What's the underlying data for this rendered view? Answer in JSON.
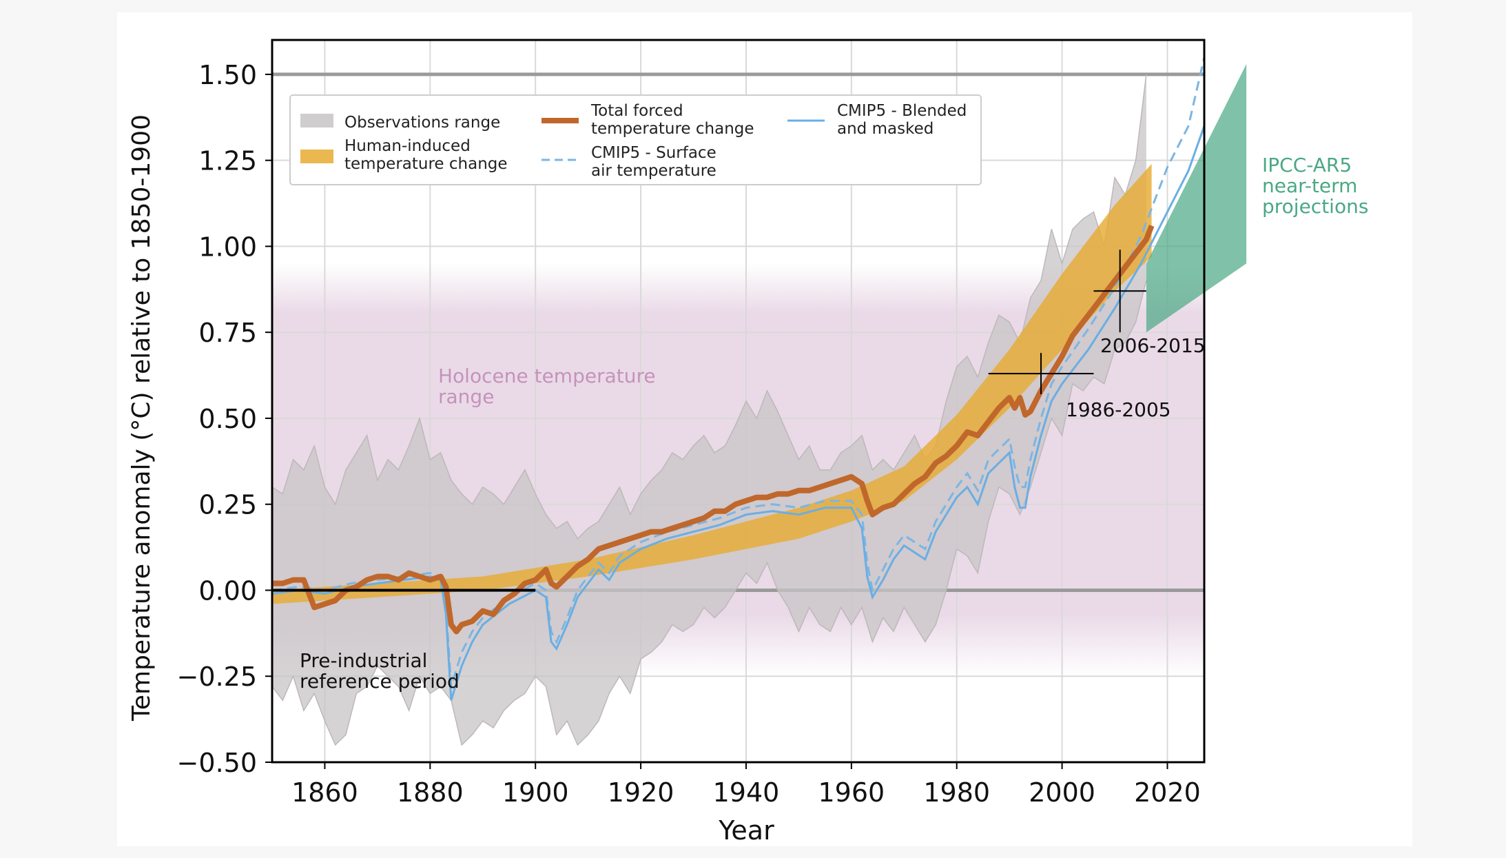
{
  "chart_data": {
    "type": "line",
    "title": "",
    "xlabel": "Year",
    "ylabel": "Temperature anomaly (°C) relative to 1850-1900",
    "xlim": [
      1850,
      2027
    ],
    "ylim": [
      -0.5,
      1.6
    ],
    "grid": true,
    "legend_position": "top-left",
    "x_ticks": [
      1860,
      1880,
      1900,
      1920,
      1940,
      1960,
      1980,
      2000,
      2020
    ],
    "y_ticks": [
      -0.5,
      -0.25,
      0.0,
      0.25,
      0.5,
      0.75,
      1.0,
      1.25,
      1.5
    ],
    "y_tick_labels": [
      "−0.50",
      "−0.25",
      "0.00",
      "0.25",
      "0.50",
      "0.75",
      "1.00",
      "1.25",
      "1.50"
    ],
    "x_tick_labels": [
      "1860",
      "1880",
      "1900",
      "1920",
      "1940",
      "1960",
      "1980",
      "2000",
      "2020"
    ],
    "reference_lines": [
      0.0,
      1.5
    ],
    "legend": [
      {
        "key": "obs",
        "label_lines": [
          "Observations range"
        ],
        "style": "band",
        "color": "#c8c4c6"
      },
      {
        "key": "human",
        "label_lines": [
          "Human-induced",
          "temperature change"
        ],
        "style": "band",
        "color": "#e7aa30"
      },
      {
        "key": "forced",
        "label_lines": [
          "Total forced",
          "temperature change"
        ],
        "style": "line",
        "color": "#c0672b"
      },
      {
        "key": "sat",
        "label_lines": [
          "CMIP5 - Surface",
          "air temperature"
        ],
        "style": "dashed",
        "color": "#7ab6e4"
      },
      {
        "key": "blended",
        "label_lines": [
          "CMIP5 - Blended",
          "and masked"
        ],
        "style": "line",
        "color": "#6aaee3"
      }
    ],
    "annotations": [
      {
        "key": "holocene",
        "lines": [
          "Holocene temperature",
          "range"
        ],
        "color": "#c493bc"
      },
      {
        "key": "preind",
        "lines": [
          "Pre-industrial",
          "reference period"
        ],
        "color": "#111111"
      },
      {
        "key": "p1986",
        "lines": [
          "1986-2005"
        ],
        "color": "#111111"
      },
      {
        "key": "p2006",
        "lines": [
          "2006-2015"
        ],
        "color": "#111111"
      },
      {
        "key": "ipcc",
        "lines": [
          "IPCC-AR5",
          "near-term",
          "projections"
        ],
        "color": "#4aa884"
      }
    ],
    "holocene_range": [
      -0.2,
      0.9
    ],
    "preindustrial_reference": {
      "x": [
        1850,
        1900
      ],
      "y": 0.0
    },
    "period_markers": [
      {
        "label": "1986-2005",
        "center": [
          1996,
          0.63
        ],
        "x_range": [
          1986,
          2006
        ],
        "y_range": [
          0.57,
          0.69
        ]
      },
      {
        "label": "2006-2015",
        "center": [
          2011,
          0.87
        ],
        "x_range": [
          2006,
          2016
        ],
        "y_range": [
          0.75,
          0.99
        ]
      }
    ],
    "ipcc_projection": {
      "x": [
        2016,
        2035
      ],
      "lower": [
        0.75,
        0.95
      ],
      "upper": [
        0.95,
        1.53
      ]
    },
    "colors": {
      "observations": "#c8c4c6",
      "human_induced": "#e7aa30",
      "total_forced": "#c0672b",
      "cmip5": "#6aaee3",
      "holocene": "#e6d3e3",
      "ipcc": "#4aa884",
      "reference_line": "#9a9a9a"
    },
    "series": [
      {
        "key": "obs",
        "name": "Observations range",
        "x": [
          1850,
          1852,
          1854,
          1856,
          1858,
          1860,
          1862,
          1864,
          1866,
          1868,
          1870,
          1872,
          1874,
          1876,
          1878,
          1880,
          1882,
          1884,
          1886,
          1888,
          1890,
          1892,
          1894,
          1896,
          1898,
          1900,
          1902,
          1904,
          1906,
          1908,
          1910,
          1912,
          1914,
          1916,
          1918,
          1920,
          1922,
          1924,
          1926,
          1928,
          1930,
          1932,
          1934,
          1936,
          1938,
          1940,
          1942,
          1944,
          1946,
          1948,
          1950,
          1952,
          1954,
          1956,
          1958,
          1960,
          1962,
          1964,
          1966,
          1968,
          1970,
          1972,
          1974,
          1976,
          1978,
          1980,
          1982,
          1984,
          1986,
          1988,
          1990,
          1992,
          1994,
          1996,
          1998,
          2000,
          2002,
          2004,
          2006,
          2008,
          2010,
          2012,
          2014,
          2016
        ],
        "lower": [
          -0.28,
          -0.32,
          -0.25,
          -0.35,
          -0.3,
          -0.38,
          -0.45,
          -0.42,
          -0.3,
          -0.28,
          -0.22,
          -0.25,
          -0.28,
          -0.35,
          -0.25,
          -0.3,
          -0.28,
          -0.32,
          -0.45,
          -0.42,
          -0.38,
          -0.4,
          -0.35,
          -0.32,
          -0.3,
          -0.25,
          -0.28,
          -0.42,
          -0.38,
          -0.45,
          -0.42,
          -0.38,
          -0.3,
          -0.25,
          -0.3,
          -0.2,
          -0.18,
          -0.15,
          -0.1,
          -0.12,
          -0.1,
          -0.05,
          -0.08,
          -0.05,
          0.0,
          0.05,
          0.02,
          0.08,
          0.0,
          -0.05,
          -0.12,
          -0.05,
          -0.1,
          -0.12,
          -0.05,
          -0.1,
          -0.05,
          -0.15,
          -0.08,
          -0.12,
          -0.05,
          -0.1,
          -0.15,
          -0.1,
          0.0,
          0.12,
          0.1,
          0.05,
          0.2,
          0.3,
          0.28,
          0.22,
          0.3,
          0.4,
          0.5,
          0.45,
          0.6,
          0.58,
          0.62,
          0.6,
          0.7,
          0.72,
          0.78,
          0.9
        ],
        "upper": [
          0.3,
          0.28,
          0.38,
          0.35,
          0.42,
          0.3,
          0.25,
          0.35,
          0.4,
          0.45,
          0.32,
          0.38,
          0.35,
          0.42,
          0.5,
          0.38,
          0.4,
          0.32,
          0.28,
          0.25,
          0.3,
          0.28,
          0.25,
          0.3,
          0.35,
          0.28,
          0.22,
          0.18,
          0.2,
          0.15,
          0.18,
          0.2,
          0.25,
          0.3,
          0.22,
          0.28,
          0.32,
          0.35,
          0.4,
          0.38,
          0.42,
          0.45,
          0.4,
          0.42,
          0.48,
          0.55,
          0.5,
          0.58,
          0.52,
          0.45,
          0.38,
          0.42,
          0.35,
          0.35,
          0.4,
          0.42,
          0.45,
          0.35,
          0.38,
          0.35,
          0.4,
          0.45,
          0.38,
          0.42,
          0.55,
          0.65,
          0.68,
          0.62,
          0.72,
          0.8,
          0.78,
          0.72,
          0.85,
          0.9,
          1.05,
          0.95,
          1.05,
          1.08,
          1.1,
          1.0,
          1.2,
          1.15,
          1.25,
          1.5
        ]
      },
      {
        "key": "human",
        "name": "Human-induced temperature change",
        "x": [
          1850,
          1870,
          1890,
          1910,
          1930,
          1950,
          1960,
          1970,
          1980,
          1990,
          2000,
          2010,
          2017
        ],
        "lower": [
          -0.04,
          -0.02,
          0.0,
          0.04,
          0.09,
          0.15,
          0.2,
          0.26,
          0.38,
          0.53,
          0.7,
          0.87,
          0.97
        ],
        "upper": [
          0.0,
          0.02,
          0.04,
          0.09,
          0.16,
          0.24,
          0.29,
          0.36,
          0.51,
          0.7,
          0.92,
          1.12,
          1.24
        ]
      },
      {
        "key": "forced",
        "name": "Total forced temperature change",
        "x": [
          1850,
          1852,
          1854,
          1856,
          1858,
          1860,
          1862,
          1864,
          1866,
          1868,
          1870,
          1872,
          1874,
          1876,
          1878,
          1880,
          1882,
          1883,
          1884,
          1885,
          1886,
          1888,
          1890,
          1892,
          1894,
          1896,
          1898,
          1900,
          1902,
          1903,
          1904,
          1906,
          1908,
          1910,
          1912,
          1914,
          1916,
          1918,
          1920,
          1922,
          1924,
          1926,
          1928,
          1930,
          1932,
          1934,
          1936,
          1938,
          1940,
          1942,
          1944,
          1946,
          1948,
          1950,
          1952,
          1954,
          1956,
          1958,
          1960,
          1962,
          1963,
          1964,
          1965,
          1966,
          1968,
          1970,
          1972,
          1974,
          1976,
          1978,
          1980,
          1982,
          1984,
          1986,
          1988,
          1990,
          1991,
          1992,
          1993,
          1994,
          1996,
          1998,
          2000,
          2002,
          2004,
          2006,
          2008,
          2010,
          2012,
          2014,
          2016,
          2017
        ],
        "y": [
          0.02,
          0.02,
          0.03,
          0.03,
          -0.05,
          -0.04,
          -0.03,
          0.0,
          0.01,
          0.03,
          0.04,
          0.04,
          0.03,
          0.05,
          0.04,
          0.03,
          0.04,
          0.01,
          -0.1,
          -0.12,
          -0.1,
          -0.09,
          -0.06,
          -0.07,
          -0.03,
          -0.01,
          0.02,
          0.03,
          0.06,
          0.02,
          0.01,
          0.04,
          0.07,
          0.09,
          0.12,
          0.13,
          0.14,
          0.15,
          0.16,
          0.17,
          0.17,
          0.18,
          0.19,
          0.2,
          0.21,
          0.23,
          0.23,
          0.25,
          0.26,
          0.27,
          0.27,
          0.28,
          0.28,
          0.29,
          0.29,
          0.3,
          0.31,
          0.32,
          0.33,
          0.31,
          0.26,
          0.22,
          0.23,
          0.24,
          0.25,
          0.28,
          0.31,
          0.33,
          0.37,
          0.39,
          0.42,
          0.46,
          0.45,
          0.49,
          0.53,
          0.56,
          0.53,
          0.56,
          0.51,
          0.52,
          0.58,
          0.63,
          0.68,
          0.74,
          0.78,
          0.82,
          0.86,
          0.9,
          0.94,
          0.98,
          1.02,
          1.06
        ]
      },
      {
        "key": "sat",
        "name": "CMIP5 - Surface air temperature",
        "x": [
          1850,
          1855,
          1860,
          1865,
          1870,
          1875,
          1880,
          1882,
          1883,
          1884,
          1886,
          1888,
          1890,
          1895,
          1900,
          1902,
          1903,
          1904,
          1906,
          1908,
          1910,
          1912,
          1914,
          1916,
          1918,
          1920,
          1925,
          1930,
          1935,
          1940,
          1945,
          1950,
          1955,
          1960,
          1962,
          1963,
          1964,
          1966,
          1968,
          1970,
          1974,
          1976,
          1980,
          1982,
          1984,
          1986,
          1990,
          1991,
          1992,
          1993,
          1994,
          1996,
          1998,
          2000,
          2005,
          2010,
          2015,
          2020,
          2024,
          2027
        ],
        "y": [
          0.0,
          0.01,
          0.0,
          0.02,
          0.03,
          0.04,
          0.05,
          0.04,
          -0.05,
          -0.28,
          -0.18,
          -0.12,
          -0.08,
          -0.02,
          0.02,
          0.0,
          -0.12,
          -0.15,
          -0.08,
          0.0,
          0.04,
          0.08,
          0.05,
          0.1,
          0.12,
          0.14,
          0.17,
          0.19,
          0.21,
          0.24,
          0.25,
          0.24,
          0.26,
          0.26,
          0.22,
          0.08,
          0.0,
          0.06,
          0.12,
          0.16,
          0.12,
          0.2,
          0.3,
          0.34,
          0.29,
          0.38,
          0.44,
          0.36,
          0.3,
          0.3,
          0.38,
          0.5,
          0.6,
          0.65,
          0.76,
          0.88,
          1.03,
          1.23,
          1.35,
          1.55
        ]
      },
      {
        "key": "blended",
        "name": "CMIP5 - Blended and masked",
        "x": [
          1850,
          1855,
          1860,
          1865,
          1870,
          1875,
          1880,
          1882,
          1883,
          1884,
          1886,
          1888,
          1890,
          1895,
          1900,
          1902,
          1903,
          1904,
          1906,
          1908,
          1910,
          1912,
          1914,
          1916,
          1918,
          1920,
          1925,
          1930,
          1935,
          1940,
          1945,
          1950,
          1955,
          1960,
          1962,
          1963,
          1964,
          1966,
          1968,
          1970,
          1974,
          1976,
          1980,
          1982,
          1984,
          1986,
          1990,
          1991,
          1992,
          1993,
          1994,
          1996,
          1998,
          2000,
          2005,
          2010,
          2015,
          2020,
          2024,
          2027
        ],
        "y": [
          -0.01,
          0.0,
          -0.01,
          0.01,
          0.02,
          0.03,
          0.04,
          0.03,
          -0.07,
          -0.32,
          -0.22,
          -0.15,
          -0.1,
          -0.04,
          0.0,
          -0.02,
          -0.15,
          -0.17,
          -0.1,
          -0.02,
          0.02,
          0.06,
          0.03,
          0.08,
          0.1,
          0.12,
          0.15,
          0.17,
          0.19,
          0.22,
          0.23,
          0.22,
          0.24,
          0.24,
          0.18,
          0.04,
          -0.02,
          0.03,
          0.09,
          0.13,
          0.09,
          0.17,
          0.27,
          0.3,
          0.25,
          0.34,
          0.4,
          0.3,
          0.24,
          0.24,
          0.33,
          0.45,
          0.55,
          0.6,
          0.7,
          0.82,
          0.95,
          1.1,
          1.22,
          1.35
        ]
      }
    ]
  }
}
